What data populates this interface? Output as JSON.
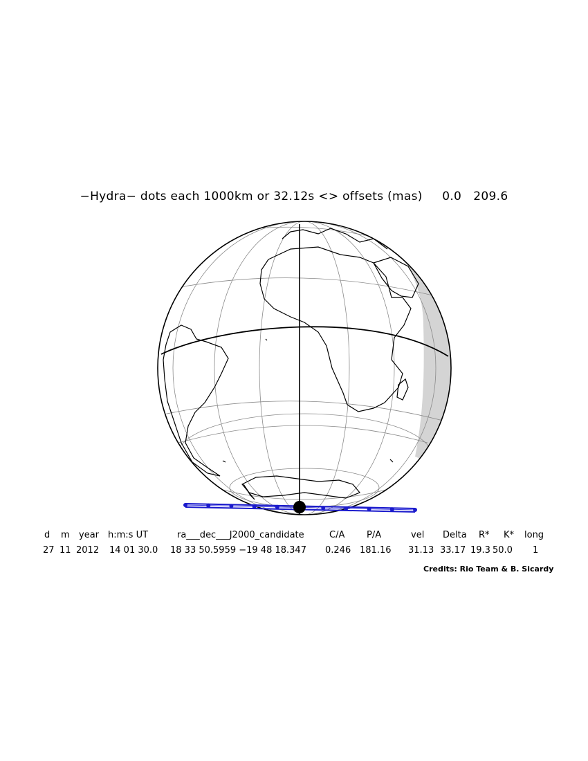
{
  "header": {
    "title": "−Hydra− dots each 1000km or 32.12s <> offsets (mas)     0.0   209.6"
  },
  "map": {
    "projection": "orthographic",
    "ocean_color": "#ffffff",
    "land_outline_color": "#000000",
    "night_shade_color": "#d4d4d4",
    "graticule_color": "#888888",
    "track_color": "#1a1acc",
    "track_dot_count": 11,
    "central_dot": "occultation center"
  },
  "table": {
    "headers": [
      "d",
      "m",
      "year",
      "h:m:s UT",
      "ra___dec___J2000_candidate",
      "C/A",
      "P/A",
      "vel",
      "Delta",
      "R*",
      "K*",
      "long"
    ],
    "values": [
      "27",
      "11",
      "2012",
      "14 01 30.0",
      "18 33 50.5959 −19 48 18.347",
      "0.246",
      "181.16",
      "31.13",
      "33.17",
      "19.3",
      "50.0",
      "1"
    ]
  },
  "footer": {
    "credits": "Credits: Rio Team & B. Sicardy"
  }
}
